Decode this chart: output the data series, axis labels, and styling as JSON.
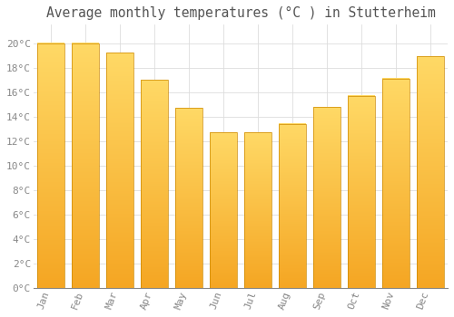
{
  "title": "Average monthly temperatures (°C ) in Stutterheim",
  "months": [
    "Jan",
    "Feb",
    "Mar",
    "Apr",
    "May",
    "Jun",
    "Jul",
    "Aug",
    "Sep",
    "Oct",
    "Nov",
    "Dec"
  ],
  "temperatures": [
    20.0,
    20.0,
    19.2,
    17.0,
    14.7,
    12.7,
    12.7,
    13.4,
    14.8,
    15.7,
    17.1,
    18.9
  ],
  "bar_color_bottom": "#F5A623",
  "bar_color_top": "#FFD966",
  "bar_edge_color": "#CC8800",
  "background_color": "#FFFFFF",
  "grid_color": "#DDDDDD",
  "tick_label_color": "#888888",
  "title_color": "#555555",
  "ylim": [
    0,
    21.5
  ],
  "yticks": [
    0,
    2,
    4,
    6,
    8,
    10,
    12,
    14,
    16,
    18,
    20
  ],
  "ytick_labels": [
    "0°C",
    "2°C",
    "4°C",
    "6°C",
    "8°C",
    "10°C",
    "12°C",
    "14°C",
    "16°C",
    "18°C",
    "20°C"
  ],
  "title_fontsize": 10.5
}
